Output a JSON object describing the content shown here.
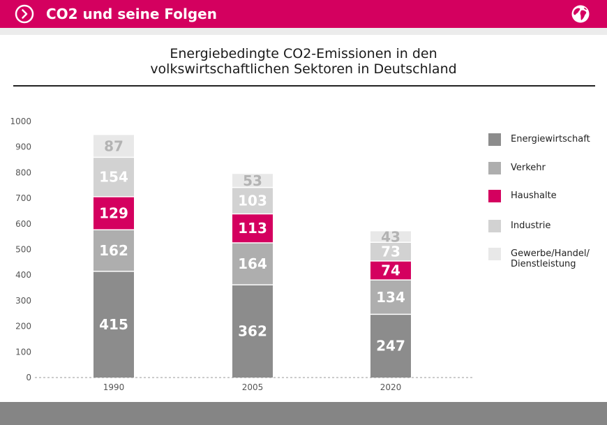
{
  "header": {
    "title": "CO2 und seine Folgen",
    "nav_icon": "chevron-right-circle-icon",
    "globe_icon": "globe-icon",
    "accent_color": "#d4005f"
  },
  "chart_data": {
    "type": "bar",
    "stacked": true,
    "title_lines": [
      "Energiebedingte CO2-Emissionen in den",
      "volkswirtschaftlichen Sektoren in Deutschland"
    ],
    "categories": [
      "1990",
      "2005",
      "2020"
    ],
    "ylim": [
      0,
      1000
    ],
    "y_ticks": [
      "0",
      "100",
      "200",
      "300",
      "400",
      "500",
      "600",
      "700",
      "800",
      "900",
      "1000"
    ],
    "xlabel": "",
    "ylabel": "",
    "series": [
      {
        "name": "Energiewirtschaft",
        "color": "#8c8c8c",
        "label_color": "#ffffff",
        "values": [
          415,
          362,
          247
        ]
      },
      {
        "name": "Verkehr",
        "color": "#aeaeae",
        "label_color": "#ffffff",
        "values": [
          162,
          164,
          134
        ]
      },
      {
        "name": "Haushalte",
        "color": "#d4005f",
        "label_color": "#ffffff",
        "values": [
          129,
          113,
          74
        ]
      },
      {
        "name": "Industrie",
        "color": "#d2d2d2",
        "label_color": "#ffffff",
        "values": [
          154,
          103,
          73
        ]
      },
      {
        "name": "Gewerbe/Handel/ Dienstleistung",
        "legend_lines": [
          "Gewerbe/Handel/",
          "Dienstleistung"
        ],
        "color": "#e8e8e8",
        "label_color": "#b3b3b3",
        "values": [
          87,
          53,
          43
        ]
      }
    ],
    "legend_position": "right"
  }
}
